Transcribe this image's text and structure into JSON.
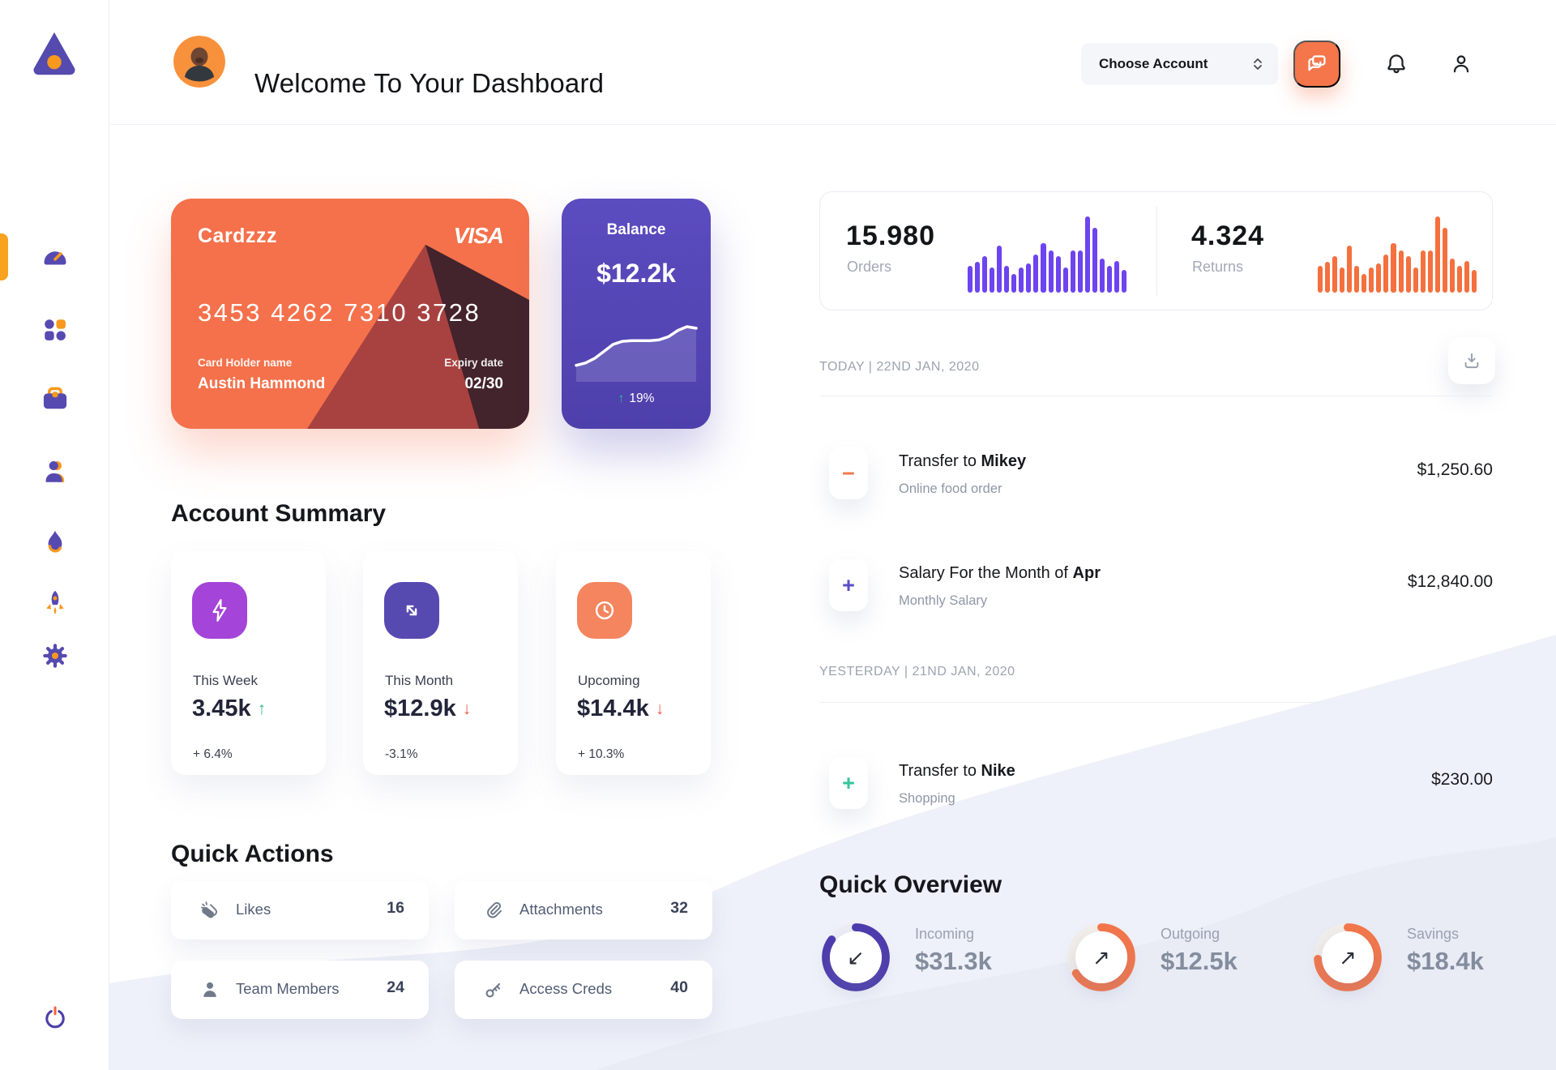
{
  "colors": {
    "orange": "#F4764A",
    "orange_accent": "#F8981D",
    "purple": "#564AB1",
    "purple_bars": "#6D44F0",
    "ring_purple": "#4C3BAD",
    "green": "#2EBD85",
    "red": "#E25C4A"
  },
  "sidebar": {
    "items": [
      "dashboard",
      "apps",
      "work",
      "team",
      "trending",
      "launch",
      "settings"
    ],
    "active_item": "dashboard"
  },
  "header": {
    "title": "Welcome To Your Dashboard",
    "account_selector_label": "Choose Account"
  },
  "credit_card": {
    "name": "Cardzzz",
    "brand": "VISA",
    "number": "3453 4262 7310 3728",
    "holder_label": "Card Holder name",
    "holder_name": "Austin Hammond",
    "expiry_label": "Expiry date",
    "expiry": "02/30"
  },
  "balance_card": {
    "title": "Balance",
    "amount": "$12.2k",
    "change_glyph": "↑",
    "change": "19%"
  },
  "stats": {
    "orders": {
      "value": "15.980",
      "label": "Orders"
    },
    "returns": {
      "value": "4.324",
      "label": "Returns"
    }
  },
  "account_summary": {
    "title": "Account Summary",
    "cards": [
      {
        "icon": "lightning",
        "icon_bg": "#A444D8",
        "label": "This Week",
        "value": "3.45k",
        "trend_glyph": "↑",
        "trend_color": "#2EBD85",
        "delta": "+ 6.4%"
      },
      {
        "icon": "diagonal-arrows",
        "icon_bg": "#564AB1",
        "label": "This Month",
        "value": "$12.9k",
        "trend_glyph": "↓",
        "trend_color": "#E25C4A",
        "delta": "-3.1%"
      },
      {
        "icon": "clock",
        "icon_bg": "#F4855E",
        "label": "Upcoming",
        "value": "$14.4k",
        "trend_glyph": "↓",
        "trend_color": "#E25C4A",
        "delta": "+ 10.3%"
      }
    ]
  },
  "quick_actions": {
    "title": "Quick Actions",
    "items": [
      {
        "icon": "clap",
        "label": "Likes",
        "count": "16"
      },
      {
        "icon": "paperclip",
        "label": "Attachments",
        "count": "32"
      },
      {
        "icon": "person",
        "label": "Team Members",
        "count": "24"
      },
      {
        "icon": "key",
        "label": "Access Creds",
        "count": "40"
      }
    ]
  },
  "transactions": {
    "groups": [
      {
        "date_label": "TODAY | 22ND JAN, 2020",
        "items": [
          {
            "icon_glyph": "−",
            "icon_color": "#F4764A",
            "title_prefix": "Transfer to ",
            "title_bold": "Mikey",
            "subtitle": "Online food order",
            "amount": "$1,250.60"
          },
          {
            "icon_glyph": "+",
            "icon_color": "#5B4FC7",
            "title_prefix": "Salary For the Month of ",
            "title_bold": "Apr",
            "subtitle": "Monthly Salary",
            "amount": "$12,840.00"
          }
        ]
      },
      {
        "date_label": "YESTERDAY | 21ND JAN, 2020",
        "items": [
          {
            "icon_glyph": "+",
            "icon_color": "#35C49B",
            "title_prefix": "Transfer to ",
            "title_bold": "Nike",
            "subtitle": "Shopping",
            "amount": "$230.00"
          }
        ]
      }
    ]
  },
  "quick_overview": {
    "title": "Quick Overview",
    "items": [
      {
        "label": "Incoming",
        "value": "$31.3k",
        "arrow": "↙",
        "ring_color": "#4C3BAD",
        "percent": 85
      },
      {
        "label": "Outgoing",
        "value": "$12.5k",
        "arrow": "↗",
        "ring_color": "#F4764A",
        "percent": 66
      },
      {
        "label": "Savings",
        "value": "$18.4k",
        "arrow": "↗",
        "ring_color": "#F4764A",
        "percent": 74
      }
    ]
  },
  "chart_data": [
    {
      "name": "orders_bars",
      "type": "bar",
      "title": "Orders activity sparkline",
      "color": "#6D44F0",
      "values": [
        35,
        40,
        48,
        33,
        62,
        35,
        25,
        33,
        38,
        50,
        65,
        55,
        48,
        33,
        55,
        55,
        100,
        85,
        45,
        35,
        42,
        30
      ]
    },
    {
      "name": "returns_bars",
      "type": "bar",
      "title": "Returns activity sparkline",
      "color": "#F4703E",
      "values": [
        35,
        40,
        48,
        33,
        62,
        35,
        25,
        33,
        38,
        50,
        65,
        55,
        48,
        33,
        55,
        55,
        100,
        85,
        45,
        35,
        42,
        30
      ]
    },
    {
      "name": "balance_line",
      "type": "line",
      "title": "Balance trend",
      "color": "#FFFFFF",
      "values": [
        15,
        18,
        24,
        33,
        42,
        46,
        47,
        47,
        47,
        48,
        52,
        60,
        65,
        63
      ]
    }
  ]
}
